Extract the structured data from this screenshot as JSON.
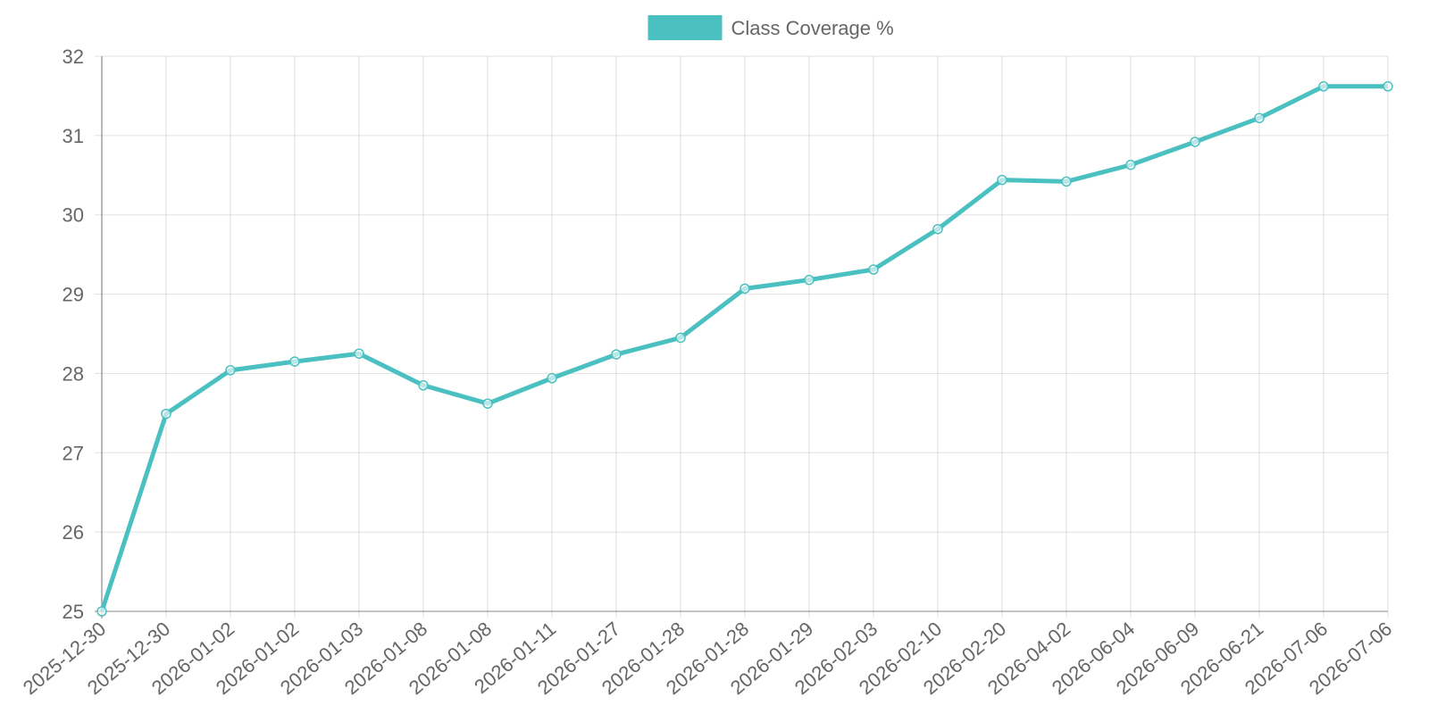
{
  "chart_data": {
    "type": "line",
    "categories": [
      "2025-12-30",
      "2025-12-30",
      "2026-01-02",
      "2026-01-02",
      "2026-01-03",
      "2026-01-08",
      "2026-01-08",
      "2026-01-11",
      "2026-01-27",
      "2026-01-28",
      "2026-01-28",
      "2026-01-29",
      "2026-02-03",
      "2026-02-10",
      "2026-02-20",
      "2026-04-02",
      "2026-06-04",
      "2026-06-09",
      "2026-06-21",
      "2026-07-06",
      "2026-07-06"
    ],
    "series": [
      {
        "name": "Class Coverage %",
        "color": "#4bc0c0",
        "values": [
          25.0,
          27.49,
          28.04,
          28.15,
          28.25,
          27.85,
          27.62,
          27.94,
          28.24,
          28.45,
          29.07,
          29.18,
          29.31,
          29.82,
          30.44,
          30.42,
          30.63,
          30.92,
          31.22,
          31.62,
          31.62
        ]
      }
    ],
    "ylim": [
      25,
      32
    ],
    "yticks": [
      25,
      26,
      27,
      28,
      29,
      30,
      31,
      32
    ],
    "grid": true,
    "legend": "top"
  }
}
